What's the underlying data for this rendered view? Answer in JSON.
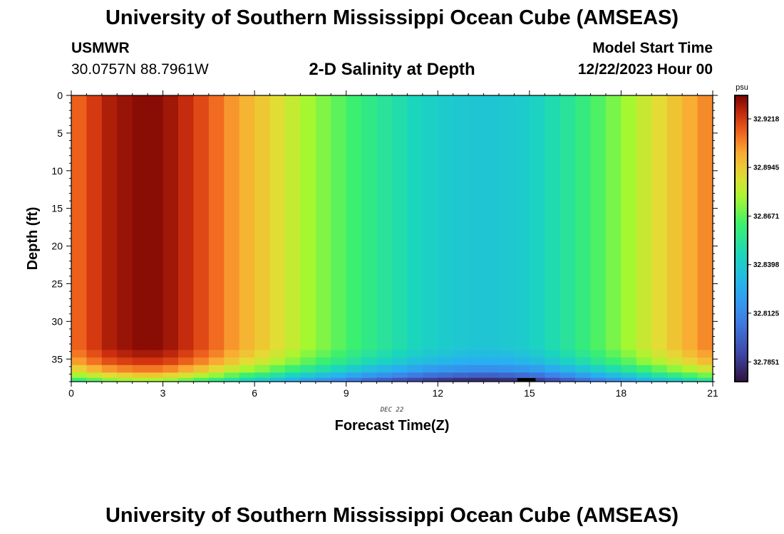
{
  "header": {
    "title": "University of Southern Mississippi Ocean Cube (AMSEAS)",
    "station": "USMWR",
    "coords": "30.0757N  88.7961W",
    "subtitle": "2-D Salinity at Depth",
    "model_start_label": "Model Start Time",
    "model_start_value": "12/22/2023 Hour 00"
  },
  "footer": {
    "title": "University of Southern Mississippi Ocean Cube (AMSEAS)"
  },
  "chart_data": {
    "type": "heatmap",
    "title": "2-D Salinity at Depth",
    "xlabel": "Forecast Time(Z)",
    "ylabel": "Depth (ft)",
    "x_sublabel": "DEC 22",
    "xlim": [
      0,
      21
    ],
    "ylim": [
      0,
      38
    ],
    "x_ticks": [
      0,
      3,
      6,
      9,
      12,
      15,
      18,
      21
    ],
    "y_ticks": [
      0,
      5,
      10,
      15,
      20,
      25,
      30,
      35
    ],
    "x_step_hours": 0.5,
    "colorbar": {
      "unit": "psu",
      "ticks": [
        "32.9218",
        "32.8945",
        "32.8671",
        "32.8398",
        "32.8125",
        "32.7851"
      ],
      "min": 32.774,
      "max": 32.935
    },
    "surface_salinity_psu": [
      32.915,
      32.922,
      32.928,
      32.931,
      32.933,
      32.933,
      32.93,
      32.925,
      32.919,
      32.913,
      32.906,
      32.9,
      32.895,
      32.889,
      32.883,
      32.877,
      32.872,
      32.867,
      32.862,
      32.857,
      32.853,
      32.849,
      32.845,
      32.842,
      32.84,
      32.838,
      32.837,
      32.837,
      32.838,
      32.84,
      32.843,
      32.848,
      32.853,
      32.859,
      32.865,
      32.871,
      32.877,
      32.884,
      32.89,
      32.896,
      32.902,
      32.908
    ],
    "depth_layers_ft": [
      [
        0,
        33.8
      ],
      [
        33.8,
        34.8
      ],
      [
        34.8,
        35.8
      ],
      [
        35.8,
        36.8
      ],
      [
        36.8,
        37.5
      ],
      [
        37.5,
        38.0
      ]
    ],
    "layer_offsets_psu": [
      0.0,
      -0.004,
      -0.01,
      -0.022,
      -0.038,
      -0.055
    ]
  }
}
